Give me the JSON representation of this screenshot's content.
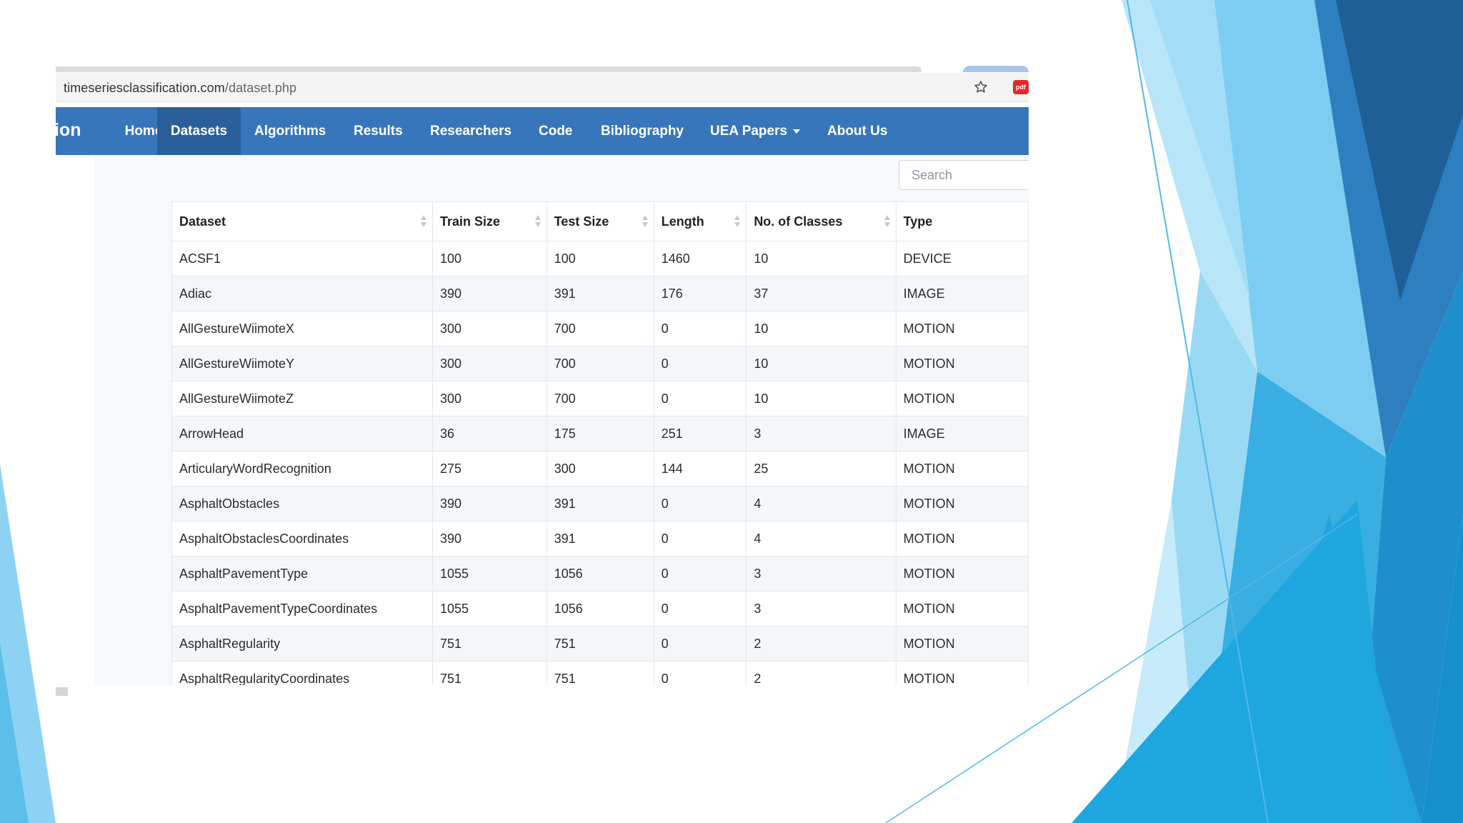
{
  "browser": {
    "url_host": "timeseriesclassification.com",
    "url_path": "/dataset.php",
    "star_icon": "star-icon",
    "extension_icon": "extension-icon",
    "extension_label": "pdf"
  },
  "nav": {
    "brand_fragment": "ion",
    "items": [
      {
        "label": "Home"
      },
      {
        "label": "Datasets",
        "active": true
      },
      {
        "label": "Algorithms"
      },
      {
        "label": "Results"
      },
      {
        "label": "Researchers"
      },
      {
        "label": "Code"
      },
      {
        "label": "Bibliography"
      },
      {
        "label": "UEA Papers",
        "dropdown": true
      },
      {
        "label": "About Us"
      }
    ],
    "color": "#3776bb",
    "active_color": "#2a5f9c"
  },
  "search": {
    "placeholder": "Search"
  },
  "table": {
    "headers": [
      "Dataset",
      "Train Size",
      "Test Size",
      "Length",
      "No. of Classes",
      "Type"
    ],
    "rows": [
      [
        "ACSF1",
        "100",
        "100",
        "1460",
        "10",
        "DEVICE"
      ],
      [
        "Adiac",
        "390",
        "391",
        "176",
        "37",
        "IMAGE"
      ],
      [
        "AllGestureWiimoteX",
        "300",
        "700",
        "0",
        "10",
        "MOTION"
      ],
      [
        "AllGestureWiimoteY",
        "300",
        "700",
        "0",
        "10",
        "MOTION"
      ],
      [
        "AllGestureWiimoteZ",
        "300",
        "700",
        "0",
        "10",
        "MOTION"
      ],
      [
        "ArrowHead",
        "36",
        "175",
        "251",
        "3",
        "IMAGE"
      ],
      [
        "ArticularyWordRecognition",
        "275",
        "300",
        "144",
        "25",
        "MOTION"
      ],
      [
        "AsphaltObstacles",
        "390",
        "391",
        "0",
        "4",
        "MOTION"
      ],
      [
        "AsphaltObstaclesCoordinates",
        "390",
        "391",
        "0",
        "4",
        "MOTION"
      ],
      [
        "AsphaltPavementType",
        "1055",
        "1056",
        "0",
        "3",
        "MOTION"
      ],
      [
        "AsphaltPavementTypeCoordinates",
        "1055",
        "1056",
        "0",
        "3",
        "MOTION"
      ],
      [
        "AsphaltRegularity",
        "751",
        "751",
        "0",
        "2",
        "MOTION"
      ],
      [
        "AsphaltRegularityCoordinates",
        "751",
        "751",
        "0",
        "2",
        "MOTION"
      ]
    ]
  },
  "theme": {
    "slide_blue_light": "#8fd3f4",
    "slide_blue_mid": "#2fa9dd",
    "slide_blue_dark": "#1f6fa6"
  }
}
